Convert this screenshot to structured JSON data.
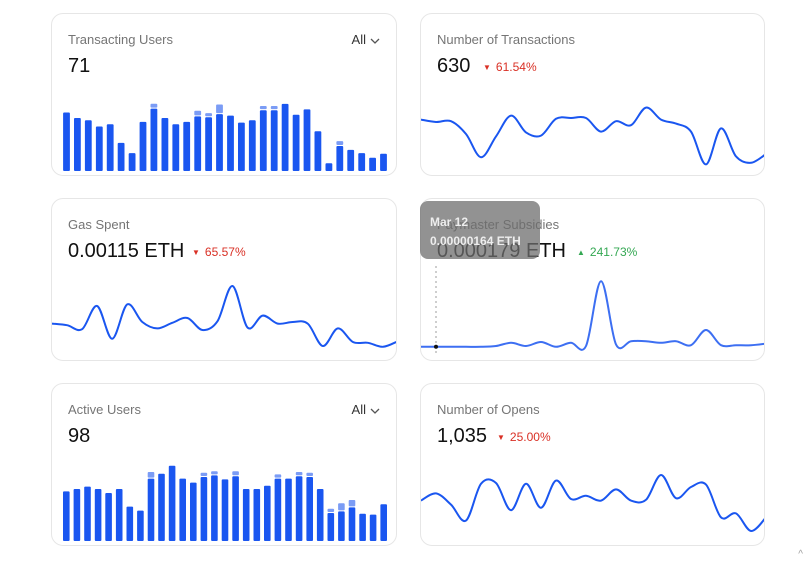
{
  "cards": {
    "transacting_users": {
      "title": "Transacting Users",
      "value": "71",
      "filter": "All",
      "bars": [
        [
          0.75,
          0.0
        ],
        [
          0.68,
          0.0
        ],
        [
          0.65,
          0.0
        ],
        [
          0.57,
          0.0
        ],
        [
          0.6,
          0.0
        ],
        [
          0.36,
          0.0
        ],
        [
          0.23,
          0.0
        ],
        [
          0.63,
          0.0
        ],
        [
          0.8,
          0.05
        ],
        [
          0.68,
          0.0
        ],
        [
          0.6,
          0.0
        ],
        [
          0.63,
          0.0
        ],
        [
          0.7,
          0.06
        ],
        [
          0.69,
          0.04
        ],
        [
          0.73,
          0.11
        ],
        [
          0.71,
          0.0
        ],
        [
          0.62,
          0.0
        ],
        [
          0.65,
          0.0
        ],
        [
          0.78,
          0.04
        ],
        [
          0.78,
          0.04
        ],
        [
          0.86,
          0.0
        ],
        [
          0.72,
          0.0
        ],
        [
          0.79,
          0.0
        ],
        [
          0.51,
          0.0
        ],
        [
          0.1,
          0.0
        ],
        [
          0.32,
          0.05
        ],
        [
          0.27,
          0.0
        ],
        [
          0.23,
          0.0
        ],
        [
          0.17,
          0.0
        ],
        [
          0.22,
          0.0
        ]
      ]
    },
    "number_of_transactions": {
      "title": "Number of Transactions",
      "value": "630",
      "delta": "61.54%",
      "trend": "down",
      "points": [
        0.63,
        0.6,
        0.61,
        0.45,
        0.16,
        0.42,
        0.68,
        0.47,
        0.43,
        0.64,
        0.65,
        0.65,
        0.48,
        0.61,
        0.56,
        0.78,
        0.63,
        0.58,
        0.48,
        0.07,
        0.52,
        0.17,
        0.09,
        0.2
      ]
    },
    "gas_spent": {
      "title": "Gas Spent",
      "value": "0.00115 ETH",
      "delta": "65.57%",
      "trend": "down",
      "points": [
        0.33,
        0.31,
        0.26,
        0.55,
        0.14,
        0.57,
        0.35,
        0.27,
        0.34,
        0.4,
        0.25,
        0.36,
        0.8,
        0.28,
        0.43,
        0.33,
        0.35,
        0.33,
        0.05,
        0.27,
        0.1,
        0.09,
        0.04,
        0.11
      ]
    },
    "paymaster_subsidies": {
      "title": "Paymaster Subsidies",
      "value": "0.000179 ETH",
      "delta": "241.73%",
      "trend": "up",
      "points": [
        0.04,
        0.04,
        0.04,
        0.04,
        0.04,
        0.05,
        0.09,
        0.05,
        0.1,
        0.04,
        0.09,
        0.05,
        0.86,
        0.07,
        0.11,
        0.11,
        0.09,
        0.11,
        0.06,
        0.25,
        0.06,
        0.06,
        0.06,
        0.08
      ]
    },
    "active_users": {
      "title": "Active Users",
      "value": "98",
      "filter": "All",
      "bars": [
        [
          0.62,
          0.0
        ],
        [
          0.65,
          0.0
        ],
        [
          0.68,
          0.0
        ],
        [
          0.65,
          0.0
        ],
        [
          0.6,
          0.0
        ],
        [
          0.65,
          0.0
        ],
        [
          0.43,
          0.0
        ],
        [
          0.38,
          0.0
        ],
        [
          0.78,
          0.07
        ],
        [
          0.84,
          0.0
        ],
        [
          0.94,
          0.0
        ],
        [
          0.78,
          0.0
        ],
        [
          0.73,
          0.0
        ],
        [
          0.8,
          0.04
        ],
        [
          0.82,
          0.04
        ],
        [
          0.77,
          0.0
        ],
        [
          0.81,
          0.05
        ],
        [
          0.65,
          0.0
        ],
        [
          0.65,
          0.0
        ],
        [
          0.69,
          0.0
        ],
        [
          0.78,
          0.04
        ],
        [
          0.78,
          0.0
        ],
        [
          0.81,
          0.04
        ],
        [
          0.8,
          0.04
        ],
        [
          0.65,
          0.0
        ],
        [
          0.35,
          0.04
        ],
        [
          0.37,
          0.09
        ],
        [
          0.42,
          0.08
        ],
        [
          0.34,
          0.0
        ],
        [
          0.33,
          0.0
        ],
        [
          0.46,
          0.0
        ]
      ]
    },
    "number_of_opens": {
      "title": "Number of Opens",
      "value": "1,035",
      "delta": "25.00%",
      "trend": "down",
      "points": [
        0.43,
        0.52,
        0.38,
        0.18,
        0.64,
        0.65,
        0.31,
        0.64,
        0.34,
        0.68,
        0.45,
        0.49,
        0.43,
        0.57,
        0.43,
        0.44,
        0.75,
        0.46,
        0.6,
        0.63,
        0.22,
        0.27,
        0.05,
        0.22
      ]
    }
  },
  "tooltip": {
    "date": "Mar 12",
    "value": "0.00000164 ETH"
  },
  "colors": {
    "series_blue": "#1a56f0",
    "stacked_light": "#7b9cf5",
    "paymaster_line": "#3d6ff2",
    "down": "#d93025",
    "up": "#34a853"
  },
  "icons": {
    "trend_down": "▼",
    "trend_up": "▲",
    "chevron": "chevron-down-icon",
    "scroll": "^"
  }
}
